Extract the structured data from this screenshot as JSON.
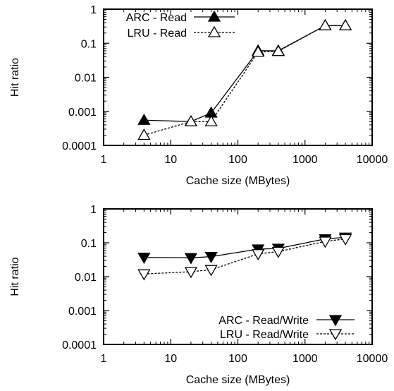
{
  "chart_data": [
    {
      "type": "line",
      "xlabel": "Cache size (MBytes)",
      "ylabel": "Hit ratio",
      "xscale": "log",
      "yscale": "log",
      "xlim": [
        1,
        10000
      ],
      "ylim": [
        0.0001,
        1
      ],
      "x_ticks": [
        "1",
        "10",
        "100",
        "1000",
        "10000"
      ],
      "y_ticks": [
        "0.0001",
        "0.001",
        "0.01",
        "0.1",
        "1"
      ],
      "grid": false,
      "legend_position": "top-left",
      "series": [
        {
          "name": "ARC - Read",
          "marker": "triangle-up-filled",
          "line": "solid",
          "x": [
            4,
            20,
            40,
            200,
            400,
            2000,
            4000
          ],
          "y": [
            0.00055,
            0.0005,
            0.0009,
            0.06,
            0.06,
            0.33,
            0.33
          ]
        },
        {
          "name": "LRU - Read",
          "marker": "triangle-up-open",
          "line": "dashed",
          "x": [
            4,
            20,
            40,
            200,
            400,
            2000,
            4000
          ],
          "y": [
            0.0002,
            0.0005,
            0.0005,
            0.055,
            0.058,
            0.33,
            0.33
          ]
        }
      ]
    },
    {
      "type": "line",
      "xlabel": "Cache size (MBytes)",
      "ylabel": "Hit ratio",
      "xscale": "log",
      "yscale": "log",
      "xlim": [
        1,
        10000
      ],
      "ylim": [
        0.0001,
        1
      ],
      "x_ticks": [
        "1",
        "10",
        "100",
        "1000",
        "10000"
      ],
      "y_ticks": [
        "0.0001",
        "0.001",
        "0.01",
        "0.1",
        "1"
      ],
      "grid": false,
      "legend_position": "bottom-right",
      "series": [
        {
          "name": "ARC - Read/Write",
          "marker": "triangle-down-filled",
          "line": "solid",
          "x": [
            4,
            20,
            40,
            200,
            400,
            2000,
            4000
          ],
          "y": [
            0.037,
            0.036,
            0.039,
            0.065,
            0.068,
            0.13,
            0.145
          ]
        },
        {
          "name": "LRU - Read/Write",
          "marker": "triangle-down-open",
          "line": "dashed",
          "x": [
            4,
            20,
            40,
            200,
            400,
            2000,
            4000
          ],
          "y": [
            0.012,
            0.014,
            0.016,
            0.047,
            0.055,
            0.11,
            0.13
          ]
        }
      ]
    }
  ]
}
